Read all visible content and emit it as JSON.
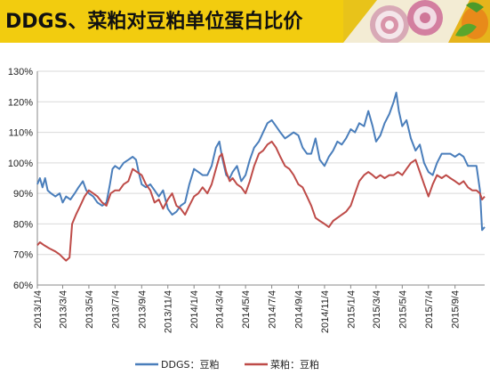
{
  "header": {
    "title": "DDGS、菜粕对豆粕单位蛋白比价"
  },
  "chart_data": {
    "type": "line",
    "title": "DDGS、菜粕对豆粕单位蛋白比价",
    "xlabel": "",
    "ylabel": "",
    "ylim": [
      0.6,
      1.3
    ],
    "yticks": [
      "60%",
      "70%",
      "80%",
      "90%",
      "100%",
      "110%",
      "120%",
      "130%"
    ],
    "xticks": [
      "2013/1/4",
      "2013/3/4",
      "2013/5/4",
      "2013/7/4",
      "2013/9/4",
      "2013/11/4",
      "2014/1/4",
      "2014/3/4",
      "2014/5/4",
      "2014/7/4",
      "2014/9/4",
      "2014/11/4",
      "2015/1/4",
      "2015/3/4",
      "2015/5/4",
      "2015/7/4",
      "2015/9/4"
    ],
    "x_end": "2015/11/12",
    "grid": "horizontal",
    "legend": "bottom",
    "series": [
      {
        "name": "DDGS：豆粕",
        "color": "#4a7ebb",
        "points": [
          [
            "2013/1/4",
            0.93
          ],
          [
            "2013/1/10",
            0.95
          ],
          [
            "2013/1/16",
            0.92
          ],
          [
            "2013/1/22",
            0.95
          ],
          [
            "2013/1/28",
            0.91
          ],
          [
            "2013/2/5",
            0.9
          ],
          [
            "2013/2/15",
            0.89
          ],
          [
            "2013/2/25",
            0.9
          ],
          [
            "2013/3/4",
            0.87
          ],
          [
            "2013/3/12",
            0.89
          ],
          [
            "2013/3/22",
            0.88
          ],
          [
            "2013/4/1",
            0.9
          ],
          [
            "2013/4/10",
            0.92
          ],
          [
            "2013/4/20",
            0.94
          ],
          [
            "2013/4/28",
            0.91
          ],
          [
            "2013/5/4",
            0.9
          ],
          [
            "2013/5/14",
            0.89
          ],
          [
            "2013/5/24",
            0.87
          ],
          [
            "2013/6/4",
            0.86
          ],
          [
            "2013/6/14",
            0.87
          ],
          [
            "2013/6/22",
            0.93
          ],
          [
            "2013/6/28",
            0.98
          ],
          [
            "2013/7/4",
            0.99
          ],
          [
            "2013/7/14",
            0.98
          ],
          [
            "2013/7/24",
            1.0
          ],
          [
            "2013/8/4",
            1.01
          ],
          [
            "2013/8/14",
            1.02
          ],
          [
            "2013/8/22",
            1.01
          ],
          [
            "2013/8/28",
            0.97
          ],
          [
            "2013/9/4",
            0.93
          ],
          [
            "2013/9/14",
            0.92
          ],
          [
            "2013/9/24",
            0.93
          ],
          [
            "2013/10/4",
            0.91
          ],
          [
            "2013/10/14",
            0.89
          ],
          [
            "2013/10/24",
            0.91
          ],
          [
            "2013/11/4",
            0.85
          ],
          [
            "2013/11/14",
            0.83
          ],
          [
            "2013/11/24",
            0.84
          ],
          [
            "2013/12/4",
            0.86
          ],
          [
            "2013/12/14",
            0.87
          ],
          [
            "2013/12/24",
            0.93
          ],
          [
            "2014/1/4",
            0.98
          ],
          [
            "2014/1/14",
            0.97
          ],
          [
            "2014/1/24",
            0.96
          ],
          [
            "2014/2/4",
            0.96
          ],
          [
            "2014/2/14",
            0.99
          ],
          [
            "2014/2/24",
            1.05
          ],
          [
            "2014/3/4",
            1.07
          ],
          [
            "2014/3/10",
            1.02
          ],
          [
            "2014/3/20",
            0.96
          ],
          [
            "2014/3/28",
            0.95
          ],
          [
            "2014/4/4",
            0.97
          ],
          [
            "2014/4/14",
            0.99
          ],
          [
            "2014/4/24",
            0.94
          ],
          [
            "2014/5/4",
            0.96
          ],
          [
            "2014/5/14",
            1.01
          ],
          [
            "2014/5/24",
            1.05
          ],
          [
            "2014/6/4",
            1.07
          ],
          [
            "2014/6/14",
            1.1
          ],
          [
            "2014/6/24",
            1.13
          ],
          [
            "2014/7/4",
            1.14
          ],
          [
            "2014/7/14",
            1.12
          ],
          [
            "2014/7/24",
            1.1
          ],
          [
            "2014/8/4",
            1.08
          ],
          [
            "2014/8/14",
            1.09
          ],
          [
            "2014/8/24",
            1.1
          ],
          [
            "2014/9/4",
            1.09
          ],
          [
            "2014/9/14",
            1.05
          ],
          [
            "2014/9/24",
            1.03
          ],
          [
            "2014/10/4",
            1.03
          ],
          [
            "2014/10/14",
            1.08
          ],
          [
            "2014/10/24",
            1.01
          ],
          [
            "2014/11/4",
            0.99
          ],
          [
            "2014/11/14",
            1.02
          ],
          [
            "2014/11/24",
            1.04
          ],
          [
            "2014/12/4",
            1.07
          ],
          [
            "2014/12/14",
            1.06
          ],
          [
            "2014/12/24",
            1.08
          ],
          [
            "2015/1/4",
            1.11
          ],
          [
            "2015/1/14",
            1.1
          ],
          [
            "2015/1/24",
            1.13
          ],
          [
            "2015/2/4",
            1.12
          ],
          [
            "2015/2/14",
            1.17
          ],
          [
            "2015/2/24",
            1.12
          ],
          [
            "2015/3/4",
            1.07
          ],
          [
            "2015/3/14",
            1.09
          ],
          [
            "2015/3/24",
            1.13
          ],
          [
            "2015/4/4",
            1.16
          ],
          [
            "2015/4/14",
            1.2
          ],
          [
            "2015/4/20",
            1.23
          ],
          [
            "2015/4/26",
            1.17
          ],
          [
            "2015/5/4",
            1.12
          ],
          [
            "2015/5/14",
            1.14
          ],
          [
            "2015/5/24",
            1.08
          ],
          [
            "2015/6/4",
            1.04
          ],
          [
            "2015/6/14",
            1.06
          ],
          [
            "2015/6/24",
            1.0
          ],
          [
            "2015/7/4",
            0.97
          ],
          [
            "2015/7/14",
            0.96
          ],
          [
            "2015/7/24",
            1.0
          ],
          [
            "2015/8/4",
            1.03
          ],
          [
            "2015/8/14",
            1.03
          ],
          [
            "2015/8/24",
            1.03
          ],
          [
            "2015/9/4",
            1.02
          ],
          [
            "2015/9/14",
            1.03
          ],
          [
            "2015/9/24",
            1.02
          ],
          [
            "2015/10/4",
            0.99
          ],
          [
            "2015/10/14",
            0.99
          ],
          [
            "2015/10/24",
            0.99
          ],
          [
            "2015/11/1",
            0.91
          ],
          [
            "2015/11/6",
            0.78
          ],
          [
            "2015/11/12",
            0.79
          ]
        ]
      },
      {
        "name": "菜粕：豆粕",
        "color": "#be4b48",
        "points": [
          [
            "2013/1/4",
            0.73
          ],
          [
            "2013/1/10",
            0.74
          ],
          [
            "2013/1/20",
            0.73
          ],
          [
            "2013/2/1",
            0.72
          ],
          [
            "2013/2/15",
            0.71
          ],
          [
            "2013/2/25",
            0.7
          ],
          [
            "2013/3/4",
            0.69
          ],
          [
            "2013/3/12",
            0.68
          ],
          [
            "2013/3/20",
            0.69
          ],
          [
            "2013/3/26",
            0.8
          ],
          [
            "2013/4/4",
            0.83
          ],
          [
            "2013/4/14",
            0.86
          ],
          [
            "2013/4/24",
            0.89
          ],
          [
            "2013/5/4",
            0.91
          ],
          [
            "2013/5/14",
            0.9
          ],
          [
            "2013/5/24",
            0.89
          ],
          [
            "2013/6/4",
            0.87
          ],
          [
            "2013/6/14",
            0.86
          ],
          [
            "2013/6/24",
            0.9
          ],
          [
            "2013/7/4",
            0.91
          ],
          [
            "2013/7/14",
            0.91
          ],
          [
            "2013/7/24",
            0.93
          ],
          [
            "2013/8/4",
            0.94
          ],
          [
            "2013/8/14",
            0.98
          ],
          [
            "2013/8/24",
            0.97
          ],
          [
            "2013/9/4",
            0.96
          ],
          [
            "2013/9/14",
            0.93
          ],
          [
            "2013/9/24",
            0.91
          ],
          [
            "2013/10/4",
            0.87
          ],
          [
            "2013/10/14",
            0.88
          ],
          [
            "2013/10/24",
            0.85
          ],
          [
            "2013/11/4",
            0.88
          ],
          [
            "2013/11/14",
            0.9
          ],
          [
            "2013/11/24",
            0.86
          ],
          [
            "2013/12/4",
            0.85
          ],
          [
            "2013/12/14",
            0.83
          ],
          [
            "2013/12/24",
            0.86
          ],
          [
            "2014/1/4",
            0.89
          ],
          [
            "2014/1/14",
            0.9
          ],
          [
            "2014/1/24",
            0.92
          ],
          [
            "2014/2/4",
            0.9
          ],
          [
            "2014/2/14",
            0.93
          ],
          [
            "2014/2/24",
            0.98
          ],
          [
            "2014/3/4",
            1.02
          ],
          [
            "2014/3/10",
            1.03
          ],
          [
            "2014/3/20",
            0.97
          ],
          [
            "2014/3/28",
            0.94
          ],
          [
            "2014/4/4",
            0.95
          ],
          [
            "2014/4/14",
            0.93
          ],
          [
            "2014/4/24",
            0.92
          ],
          [
            "2014/5/4",
            0.9
          ],
          [
            "2014/5/14",
            0.94
          ],
          [
            "2014/5/24",
            0.99
          ],
          [
            "2014/6/4",
            1.03
          ],
          [
            "2014/6/14",
            1.04
          ],
          [
            "2014/6/24",
            1.06
          ],
          [
            "2014/7/4",
            1.07
          ],
          [
            "2014/7/14",
            1.05
          ],
          [
            "2014/7/24",
            1.02
          ],
          [
            "2014/8/4",
            0.99
          ],
          [
            "2014/8/14",
            0.98
          ],
          [
            "2014/8/24",
            0.96
          ],
          [
            "2014/9/4",
            0.93
          ],
          [
            "2014/9/14",
            0.92
          ],
          [
            "2014/9/24",
            0.89
          ],
          [
            "2014/10/4",
            0.86
          ],
          [
            "2014/10/14",
            0.82
          ],
          [
            "2014/10/24",
            0.81
          ],
          [
            "2014/11/4",
            0.8
          ],
          [
            "2014/11/14",
            0.79
          ],
          [
            "2014/11/24",
            0.81
          ],
          [
            "2014/12/4",
            0.82
          ],
          [
            "2014/12/14",
            0.83
          ],
          [
            "2014/12/24",
            0.84
          ],
          [
            "2015/1/4",
            0.86
          ],
          [
            "2015/1/14",
            0.9
          ],
          [
            "2015/1/24",
            0.94
          ],
          [
            "2015/2/4",
            0.96
          ],
          [
            "2015/2/14",
            0.97
          ],
          [
            "2015/2/24",
            0.96
          ],
          [
            "2015/3/4",
            0.95
          ],
          [
            "2015/3/14",
            0.96
          ],
          [
            "2015/3/24",
            0.95
          ],
          [
            "2015/4/4",
            0.96
          ],
          [
            "2015/4/14",
            0.96
          ],
          [
            "2015/4/24",
            0.97
          ],
          [
            "2015/5/4",
            0.96
          ],
          [
            "2015/5/14",
            0.98
          ],
          [
            "2015/5/24",
            1.0
          ],
          [
            "2015/6/4",
            1.01
          ],
          [
            "2015/6/14",
            0.97
          ],
          [
            "2015/6/24",
            0.93
          ],
          [
            "2015/7/4",
            0.89
          ],
          [
            "2015/7/14",
            0.93
          ],
          [
            "2015/7/24",
            0.96
          ],
          [
            "2015/8/4",
            0.95
          ],
          [
            "2015/8/14",
            0.96
          ],
          [
            "2015/8/24",
            0.95
          ],
          [
            "2015/9/4",
            0.94
          ],
          [
            "2015/9/14",
            0.93
          ],
          [
            "2015/9/24",
            0.94
          ],
          [
            "2015/10/4",
            0.92
          ],
          [
            "2015/10/14",
            0.91
          ],
          [
            "2015/10/24",
            0.91
          ],
          [
            "2015/11/1",
            0.9
          ],
          [
            "2015/11/6",
            0.88
          ],
          [
            "2015/11/12",
            0.89
          ]
        ]
      }
    ]
  },
  "colors": {
    "title_bar": "#f2cc0f",
    "ddgs_line": "#4a7ebb",
    "rapeseed_line": "#be4b48",
    "grid": "#d9d9d9"
  }
}
